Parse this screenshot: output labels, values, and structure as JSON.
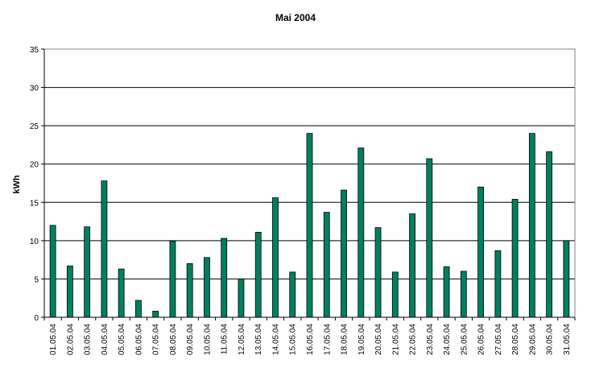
{
  "chart_data": {
    "type": "bar",
    "title": "Mai 2004",
    "xlabel": "",
    "ylabel": "kWh",
    "ylim": [
      0,
      35
    ],
    "yticks": [
      0,
      5,
      10,
      15,
      20,
      25,
      30,
      35
    ],
    "grid": true,
    "bar_color": "#008060",
    "categories": [
      "01.05.04",
      "02.05.04",
      "03.05.04",
      "04.05.04",
      "05.05.04",
      "06.05.04",
      "07.05.04",
      "08.05.04",
      "09.05.04",
      "10.05.04",
      "11.05.04",
      "12.05.04",
      "13.05.04",
      "14.05.04",
      "15.05.04",
      "16.05.04",
      "17.05.04",
      "18.05.04",
      "19.05.04",
      "20.05.04",
      "21.05.04",
      "22.05.04",
      "23.05.04",
      "24.05.04",
      "25.05.04",
      "26.05.04",
      "27.05.04",
      "28.05.04",
      "29.05.04",
      "30.05.04",
      "31.05.04"
    ],
    "values": [
      12.0,
      6.7,
      11.8,
      17.8,
      6.3,
      2.2,
      0.8,
      9.9,
      7.0,
      7.8,
      10.3,
      5.0,
      11.1,
      15.6,
      5.9,
      24.0,
      13.7,
      16.6,
      22.1,
      11.7,
      5.9,
      13.5,
      20.7,
      6.6,
      6.0,
      17.0,
      8.7,
      15.4,
      24.0,
      21.6,
      10.0
    ]
  }
}
